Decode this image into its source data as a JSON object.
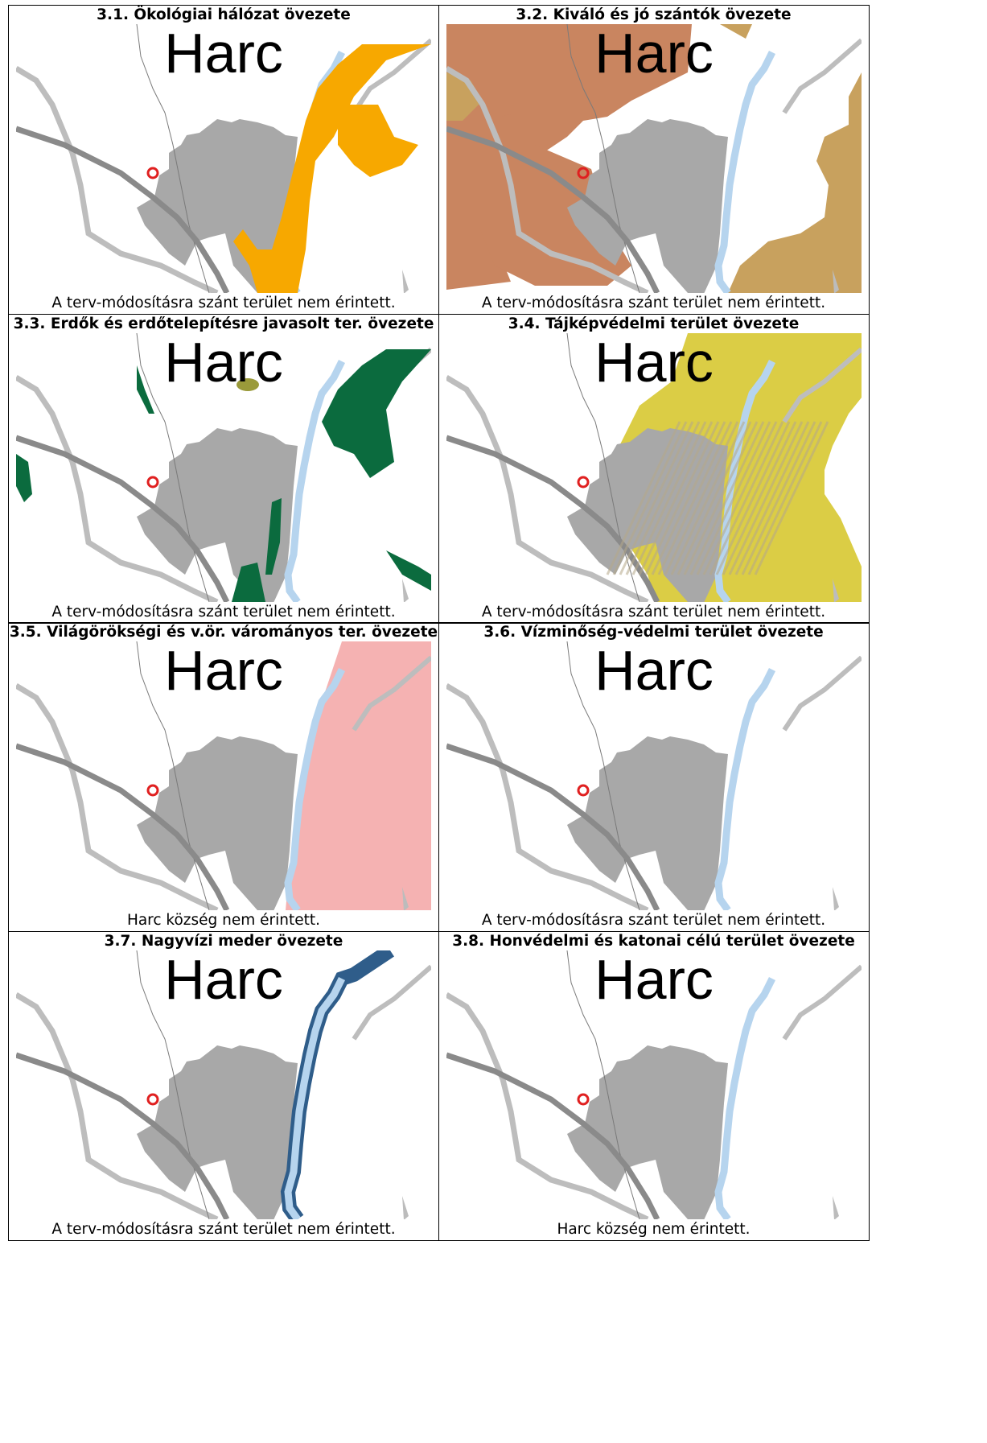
{
  "panels": [
    {
      "number": "3.1.",
      "title": "Ökológiai hálózat övezete",
      "caption": "A terv-módosításra szánt terület nem érintett.",
      "place_label": "Harc",
      "overlay": "ecological",
      "overlay_color": "#f7a800"
    },
    {
      "number": "3.2.",
      "title": "Kiváló és jó szántók övezete",
      "caption": "A terv-módosításra szánt terület nem érintett.",
      "place_label": "Harc",
      "overlay": "arable",
      "overlay_color": "#c98560",
      "overlay_color_2": "#c8a15e"
    },
    {
      "number": "3.3.",
      "title": "Erdők és erdőtelepítésre javasolt ter. övezete",
      "caption": "A terv-módosításra szánt terület nem érintett.",
      "place_label": "Harc",
      "overlay": "forest",
      "overlay_color": "#0b6b3e",
      "overlay_color_2": "#9a9a3a"
    },
    {
      "number": "3.4.",
      "title": "Tájképvédelmi terület övezete",
      "caption": "A terv-módosításra szánt terület nem érintett.",
      "place_label": "Harc",
      "overlay": "landscape",
      "overlay_color": "#dbcd45"
    },
    {
      "number": "3.5.",
      "title": "Világörökségi és v.ör. várományos ter. övezete",
      "caption": "Harc község nem érintett.",
      "place_label": "Harc",
      "overlay": "heritage",
      "overlay_color": "#f5b2b2"
    },
    {
      "number": "3.6.",
      "title": "Vízminőség-védelmi terület övezete",
      "caption": "A terv-módosításra szánt terület nem érintett.",
      "place_label": "Harc",
      "overlay": "none"
    },
    {
      "number": "3.7.",
      "title": "Nagyvízi meder övezete",
      "caption": "A terv-módosításra szánt terület nem érintett.",
      "place_label": "Harc",
      "overlay": "floodbed",
      "overlay_color": "#2f5d8a"
    },
    {
      "number": "3.8.",
      "title": "Honvédelmi és katonai célú terület övezete",
      "caption": "Harc község nem érintett.",
      "place_label": "Harc",
      "overlay": "none"
    }
  ],
  "colors": {
    "settlement": "#a8a8a8",
    "road": "#bdbdbd",
    "main_road": "#8a8a8a",
    "river": "#b6d4ee",
    "marker": "#e02020"
  }
}
